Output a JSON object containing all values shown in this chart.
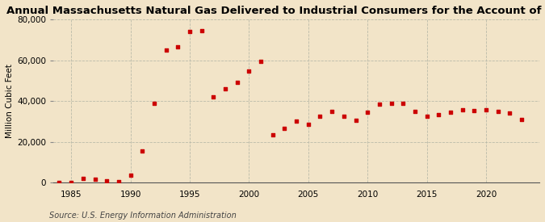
{
  "title": "Annual Massachusetts Natural Gas Delivered to Industrial Consumers for the Account of Others",
  "ylabel": "Million Cubic Feet",
  "source": "Source: U.S. Energy Information Administration",
  "background_color": "#f2e4c8",
  "plot_bg_color": "#f2e4c8",
  "marker_color": "#cc0000",
  "marker": "s",
  "marker_size": 3.5,
  "years": [
    1984,
    1985,
    1986,
    1987,
    1988,
    1989,
    1990,
    1991,
    1992,
    1993,
    1994,
    1995,
    1996,
    1997,
    1998,
    1999,
    2000,
    2001,
    2002,
    2003,
    2004,
    2005,
    2006,
    2007,
    2008,
    2009,
    2010,
    2011,
    2012,
    2013,
    2014,
    2015,
    2016,
    2017,
    2018,
    2019,
    2020,
    2021,
    2022,
    2023
  ],
  "values": [
    100,
    200,
    2200,
    1800,
    900,
    700,
    3800,
    15700,
    39000,
    65000,
    66500,
    74000,
    74500,
    42000,
    46000,
    49000,
    54500,
    59500,
    23500,
    26700,
    30100,
    28500,
    32500,
    34800,
    32500,
    30500,
    34700,
    38500,
    38700,
    39000,
    34900,
    32500,
    33500,
    34500,
    35500,
    35200,
    35700,
    34800,
    34000,
    31000
  ],
  "ylim": [
    0,
    80000
  ],
  "xlim": [
    1983.5,
    2024.5
  ],
  "yticks": [
    0,
    20000,
    40000,
    60000,
    80000
  ],
  "xticks": [
    1985,
    1990,
    1995,
    2000,
    2005,
    2010,
    2015,
    2020
  ],
  "grid_color": "#bbbbaa",
  "grid_style": "--",
  "title_fontsize": 9.5,
  "label_fontsize": 7.5,
  "tick_fontsize": 7.5,
  "source_fontsize": 7.0
}
